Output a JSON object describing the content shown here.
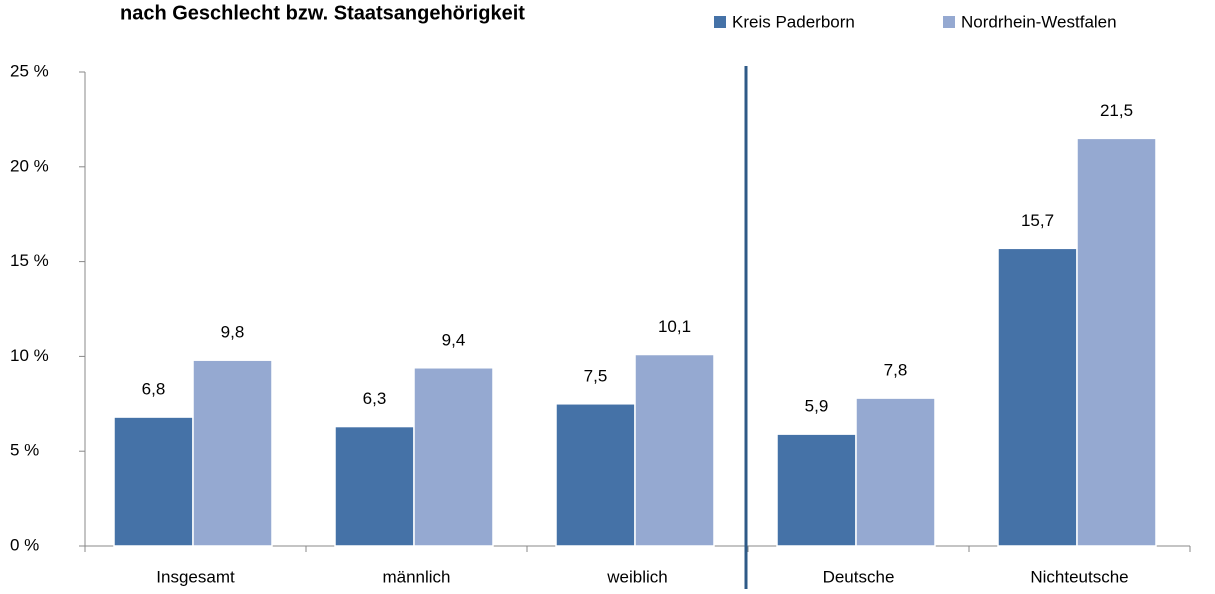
{
  "chart_data": {
    "type": "bar",
    "title": "nach Geschlecht bzw. Staatsangehörigkeit",
    "categories": [
      "Insgesamt",
      "männlich",
      "weiblich",
      "Deutsche",
      "Nichteutsche"
    ],
    "series": [
      {
        "name": "Kreis Paderborn",
        "color": "#4572a7",
        "values": [
          6.8,
          6.3,
          7.5,
          5.9,
          15.7
        ],
        "value_labels": [
          "6,8",
          "6,3",
          "7,5",
          "5,9",
          "15,7"
        ]
      },
      {
        "name": "Nordrhein-Westfalen",
        "color": "#95a9d1",
        "values": [
          9.8,
          9.4,
          10.1,
          7.8,
          21.5
        ],
        "value_labels": [
          "9,8",
          "9,4",
          "10,1",
          "7,8",
          "21,5"
        ]
      }
    ],
    "ylim": [
      0,
      25
    ],
    "yticks": [
      {
        "value": 0,
        "label": "0 %"
      },
      {
        "value": 5,
        "label": "5 %"
      },
      {
        "value": 10,
        "label": "10 %"
      },
      {
        "value": 15,
        "label": "15 %"
      },
      {
        "value": 20,
        "label": "20 %"
      },
      {
        "value": 25,
        "label": "25 %"
      }
    ],
    "legend": "top-right"
  }
}
